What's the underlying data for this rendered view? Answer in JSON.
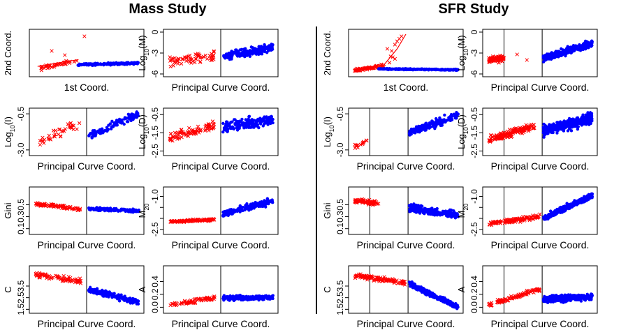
{
  "titles": {
    "mass": "Mass Study",
    "sfr": "SFR Study"
  },
  "colors": {
    "pointRed": "#ff0000",
    "pointBlue": "#0000ff",
    "axis": "#000000"
  },
  "chart_data": [
    {
      "study": "mass",
      "type": "scatter",
      "xlabel": "1st Coord.",
      "ylabel": "2nd Coord.",
      "ylim": [
        0,
        1
      ],
      "yticks": [],
      "ytick_labels": [],
      "vlines": [],
      "red": {
        "n": 45,
        "x": [
          0.05,
          0.42
        ],
        "y": [
          0.12,
          0.32
        ],
        "jitter": 0.07,
        "mode": "rise",
        "outliers": [
          [
            0.18,
            0.55
          ],
          [
            0.3,
            0.45
          ],
          [
            0.48,
            0.9
          ]
        ],
        "curve": [
          [
            0.05,
            0.18
          ],
          [
            0.25,
            0.27
          ],
          [
            0.42,
            0.34
          ]
        ]
      },
      "blue": {
        "n": 170,
        "x": [
          0.42,
          0.98
        ],
        "y": [
          0.22,
          0.26
        ],
        "jitter": 0.035
      }
    },
    {
      "study": "mass",
      "type": "scatter",
      "xlabel": "Principal Curve Coord.",
      "ylabel": "Log10(M)",
      "ylim": [
        -6,
        0
      ],
      "yticks": [
        0,
        -3,
        -6
      ],
      "ytick_labels": [
        "0",
        "-3",
        "-6"
      ],
      "vlines": [
        0.5
      ],
      "red": {
        "n": 70,
        "x": [
          0.03,
          0.45
        ],
        "y": [
          -4.2,
          -3.4
        ],
        "jitter": 1.1
      },
      "blue": {
        "n": 210,
        "x": [
          0.52,
          0.98
        ],
        "y": [
          -3.5,
          -2.2
        ],
        "jitter": 0.8
      }
    },
    {
      "study": "mass",
      "type": "scatter",
      "xlabel": "Principal Curve Coord.",
      "ylabel": "Log10(I)",
      "ylim": [
        -3.2,
        -0.3
      ],
      "yticks": [
        -0.5,
        -3
      ],
      "ytick_labels": [
        "-0.5",
        "-3.0"
      ],
      "vlines": [
        0.5
      ],
      "red": {
        "n": 40,
        "x": [
          0.05,
          0.45
        ],
        "y": [
          -2.5,
          -1.1
        ],
        "jitter": 0.45
      },
      "blue": {
        "n": 110,
        "x": [
          0.52,
          0.98
        ],
        "y": [
          -2.1,
          -0.5
        ],
        "jitter": 0.4
      }
    },
    {
      "study": "mass",
      "type": "scatter",
      "xlabel": "Principal Curve Coord.",
      "ylabel": "Log10(D)",
      "ylim": [
        -2.6,
        -0.3
      ],
      "yticks": [
        -0.5,
        -1.5,
        -2.5
      ],
      "ytick_labels": [
        "-0.5",
        "-1.5",
        "-2.5"
      ],
      "vlines": [
        0.5
      ],
      "red": {
        "n": 90,
        "x": [
          0.03,
          0.45
        ],
        "y": [
          -1.8,
          -1.1
        ],
        "jitter": 0.4
      },
      "blue": {
        "n": 180,
        "x": [
          0.52,
          0.98
        ],
        "y": [
          -1.2,
          -0.8
        ],
        "jitter": 0.45
      }
    },
    {
      "study": "mass",
      "type": "scatter",
      "xlabel": "Principal Curve Coord.",
      "ylabel": "Gini",
      "ylim": [
        0.05,
        0.75
      ],
      "yticks": [
        0.5,
        0.3,
        0.1
      ],
      "ytick_labels": [
        "0.5",
        "0.3",
        "0.1"
      ],
      "vlines": [
        0.5
      ],
      "red": {
        "n": 90,
        "x": [
          0.03,
          0.45
        ],
        "y": [
          0.52,
          0.42
        ],
        "jitter": 0.04
      },
      "blue": {
        "n": 150,
        "x": [
          0.52,
          0.98
        ],
        "y": [
          0.43,
          0.4
        ],
        "jitter": 0.04
      }
    },
    {
      "study": "mass",
      "type": "scatter",
      "xlabel": "Principal Curve Coord.",
      "ylabel": "M20",
      "ylim": [
        -2.6,
        -0.7
      ],
      "yticks": [
        -1,
        -1.5,
        -2,
        -2.5
      ],
      "ytick_labels": [
        "-1.0",
        "",
        "",
        "-2.5"
      ],
      "vlines": [
        0.5
      ],
      "red": {
        "n": 110,
        "x": [
          0.03,
          0.45
        ],
        "y": [
          -2.15,
          -2.05
        ],
        "jitter": 0.08
      },
      "blue": {
        "n": 170,
        "x": [
          0.52,
          0.98
        ],
        "y": [
          -1.8,
          -1.2
        ],
        "jitter": 0.22
      }
    },
    {
      "study": "mass",
      "type": "scatter",
      "xlabel": "Principal Curve Coord.",
      "ylabel": "C",
      "ylim": [
        1.4,
        5.0
      ],
      "yticks": [
        3.5,
        2.5,
        1.5
      ],
      "ytick_labels": [
        "3.5",
        "2.5",
        "1.5"
      ],
      "vlines": [
        0.5
      ],
      "red": {
        "n": 90,
        "x": [
          0.03,
          0.45
        ],
        "y": [
          4.5,
          3.9
        ],
        "jitter": 0.3
      },
      "blue": {
        "n": 180,
        "x": [
          0.52,
          0.98
        ],
        "y": [
          3.2,
          2.1
        ],
        "jitter": 0.35
      }
    },
    {
      "study": "mass",
      "type": "scatter",
      "xlabel": "Principal Curve Coord.",
      "ylabel": "A",
      "ylim": [
        -0.05,
        0.6
      ],
      "yticks": [
        0.4,
        0.2,
        0
      ],
      "ytick_labels": [
        "0.4",
        "0.2",
        "0.0"
      ],
      "vlines": [
        0.5
      ],
      "red": {
        "n": 70,
        "x": [
          0.03,
          0.45
        ],
        "y": [
          0.04,
          0.15
        ],
        "jitter": 0.05
      },
      "blue": {
        "n": 180,
        "x": [
          0.52,
          0.98
        ],
        "y": [
          0.14,
          0.15
        ],
        "jitter": 0.05
      }
    },
    {
      "study": "sfr",
      "type": "scatter",
      "xlabel": "1st Coord.",
      "ylabel": "2nd Coord.",
      "ylim": [
        0,
        1
      ],
      "yticks": [],
      "ytick_labels": [],
      "vlines": [],
      "red": {
        "n": 70,
        "x": [
          0.03,
          0.3
        ],
        "y": [
          0.08,
          0.2
        ],
        "jitter": 0.05,
        "mode": "rise",
        "outliers": [
          [
            0.33,
            0.6
          ],
          [
            0.37,
            0.55
          ],
          [
            0.4,
            0.7
          ],
          [
            0.42,
            0.78
          ],
          [
            0.44,
            0.84
          ],
          [
            0.46,
            0.9
          ],
          [
            0.38,
            0.4
          ],
          [
            0.36,
            0.42
          ],
          [
            0.4,
            0.36
          ],
          [
            0.35,
            0.27
          ]
        ],
        "curve": [
          [
            0.05,
            0.12
          ],
          [
            0.3,
            0.22
          ],
          [
            0.42,
            0.6
          ],
          [
            0.5,
            0.95
          ]
        ]
      },
      "blue": {
        "n": 230,
        "x": [
          0.25,
          0.98
        ],
        "y": [
          0.12,
          0.1
        ],
        "jitter": 0.02
      }
    },
    {
      "study": "sfr",
      "type": "scatter",
      "xlabel": "Principal Curve Coord.",
      "ylabel": "Log10(M)",
      "ylim": [
        -6,
        0
      ],
      "yticks": [
        0,
        -3,
        -6
      ],
      "ytick_labels": [
        "0",
        "-3",
        "-6"
      ],
      "vlines": [
        0.17,
        0.52
      ],
      "red": {
        "n": 80,
        "x": [
          0.03,
          0.17
        ],
        "y": [
          -4.0,
          -3.7
        ],
        "jitter": 0.7,
        "outliers": [
          [
            0.29,
            -3.2
          ],
          [
            0.38,
            -4.0
          ]
        ]
      },
      "blue": {
        "n": 300,
        "x": [
          0.53,
          0.98
        ],
        "y": [
          -3.8,
          -1.6
        ],
        "jitter": 0.75
      }
    },
    {
      "study": "sfr",
      "type": "scatter",
      "xlabel": "Principal Curve Coord.",
      "ylabel": "Log10(I)",
      "ylim": [
        -3.2,
        -0.3
      ],
      "yticks": [
        -0.5,
        -3
      ],
      "ytick_labels": [
        "-0.5",
        "-3.0"
      ],
      "vlines": [
        0.17,
        0.52
      ],
      "red": {
        "n": 16,
        "x": [
          0.03,
          0.15
        ],
        "y": [
          -2.8,
          -2.4
        ],
        "jitter": 0.3
      },
      "blue": {
        "n": 170,
        "x": [
          0.53,
          0.98
        ],
        "y": [
          -1.8,
          -0.6
        ],
        "jitter": 0.4
      }
    },
    {
      "study": "sfr",
      "type": "scatter",
      "xlabel": "Principal Curve Coord.",
      "ylabel": "Log10(D)",
      "ylim": [
        -2.6,
        -0.3
      ],
      "yticks": [
        -0.5,
        -1.5,
        -2.5
      ],
      "ytick_labels": [
        "-0.5",
        "-1.5",
        "-2.5"
      ],
      "vlines": [
        0.17,
        0.52
      ],
      "red": {
        "n": 160,
        "x": [
          0.03,
          0.45
        ],
        "y": [
          -1.9,
          -1.1
        ],
        "jitter": 0.28
      },
      "blue": {
        "n": 320,
        "x": [
          0.53,
          0.98
        ],
        "y": [
          -1.4,
          -0.7
        ],
        "jitter": 0.42
      }
    },
    {
      "study": "sfr",
      "type": "scatter",
      "xlabel": "Principal Curve Coord.",
      "ylabel": "Gini",
      "ylim": [
        0.05,
        0.75
      ],
      "yticks": [
        0.5,
        0.3,
        0.1
      ],
      "ytick_labels": [
        "0.5",
        "0.3",
        "0.1"
      ],
      "vlines": [
        0.17,
        0.52
      ],
      "red": {
        "n": 70,
        "x": [
          0.03,
          0.25
        ],
        "y": [
          0.57,
          0.52
        ],
        "jitter": 0.06
      },
      "blue": {
        "n": 240,
        "x": [
          0.53,
          0.98
        ],
        "y": [
          0.45,
          0.32
        ],
        "jitter": 0.09
      }
    },
    {
      "study": "sfr",
      "type": "scatter",
      "xlabel": "Principal Curve Coord.",
      "ylabel": "M20",
      "ylim": [
        -2.6,
        -0.7
      ],
      "yticks": [
        -1,
        -1.5,
        -2,
        -2.5
      ],
      "ytick_labels": [
        "-1.0",
        "",
        "",
        "-2.5"
      ],
      "vlines": [
        0.17,
        0.52
      ],
      "red": {
        "n": 120,
        "x": [
          0.03,
          0.5
        ],
        "y": [
          -2.25,
          -1.9
        ],
        "jitter": 0.16
      },
      "blue": {
        "n": 300,
        "x": [
          0.53,
          0.98
        ],
        "y": [
          -2.0,
          -0.95
        ],
        "jitter": 0.18
      }
    },
    {
      "study": "sfr",
      "type": "scatter",
      "xlabel": "Principal Curve Coord.",
      "ylabel": "C",
      "ylim": [
        1.4,
        5.0
      ],
      "yticks": [
        3.5,
        2.5,
        1.5
      ],
      "ytick_labels": [
        "3.5",
        "2.5",
        "1.5"
      ],
      "vlines": [
        0.17,
        0.52
      ],
      "red": {
        "n": 120,
        "x": [
          0.03,
          0.5
        ],
        "y": [
          4.4,
          3.8
        ],
        "jitter": 0.28
      },
      "blue": {
        "n": 300,
        "x": [
          0.53,
          0.98
        ],
        "y": [
          3.7,
          1.7
        ],
        "jitter": 0.3
      }
    },
    {
      "study": "sfr",
      "type": "scatter",
      "xlabel": "Principal Curve Coord.",
      "ylabel": "A",
      "ylim": [
        -0.05,
        0.6
      ],
      "yticks": [
        0.4,
        0.2,
        0
      ],
      "ytick_labels": [
        "0.4",
        "0.2",
        "0.0"
      ],
      "vlines": [
        0.17,
        0.52
      ],
      "red": {
        "n": 100,
        "x": [
          0.03,
          0.5
        ],
        "y": [
          0.03,
          0.28
        ],
        "jitter": 0.05
      },
      "blue": {
        "n": 320,
        "x": [
          0.53,
          0.98
        ],
        "y": [
          0.12,
          0.16
        ],
        "jitter": 0.07
      }
    }
  ]
}
